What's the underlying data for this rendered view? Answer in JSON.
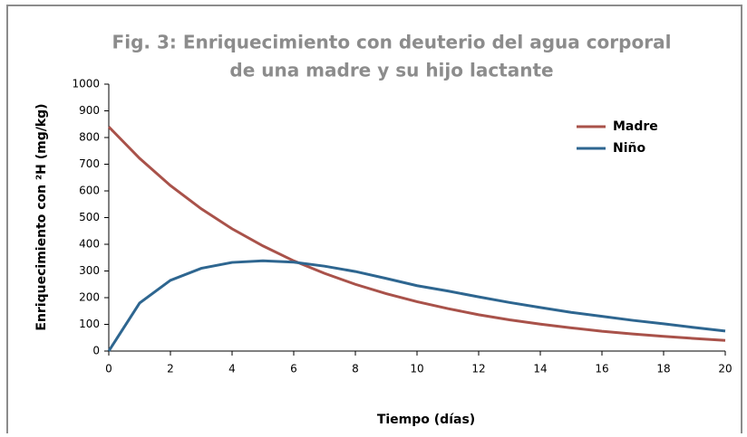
{
  "chart_data": {
    "type": "line",
    "title": [
      "Fig. 3: Enriquecimiento con deuterio del agua corporal",
      "de una madre y su hijo lactante"
    ],
    "x_label": "Tiempo (días)",
    "y_label": "Enriquecimiento con ²H (mg/kg)",
    "x": [
      0,
      1,
      2,
      3,
      4,
      5,
      6,
      7,
      8,
      9,
      10,
      11,
      12,
      13,
      14,
      15,
      16,
      17,
      18,
      19,
      20
    ],
    "series": [
      {
        "name": "Madre",
        "color": "#a9524a",
        "values": [
          840,
          722,
          620,
          533,
          458,
          394,
          338,
          291,
          250,
          215,
          185,
          159,
          136,
          117,
          101,
          87,
          74,
          64,
          55,
          47,
          40
        ]
      },
      {
        "name": "Niño",
        "color": "#2e6690",
        "values": [
          0,
          180,
          265,
          310,
          332,
          338,
          333,
          318,
          298,
          272,
          245,
          225,
          203,
          182,
          163,
          145,
          130,
          115,
          102,
          88,
          75
        ]
      }
    ],
    "xlim": [
      0,
      20
    ],
    "xticks": [
      0,
      2,
      4,
      6,
      8,
      10,
      12,
      14,
      16,
      18,
      20
    ],
    "ylim": [
      0,
      1000
    ],
    "yticks": [
      0,
      100,
      200,
      300,
      400,
      500,
      600,
      700,
      800,
      900,
      1000
    ],
    "grid": false,
    "legend": "upper right"
  }
}
